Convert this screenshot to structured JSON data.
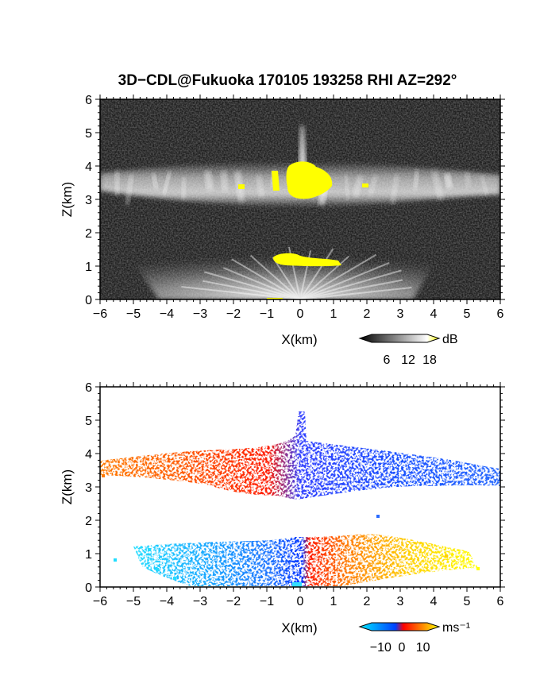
{
  "title": "3D−CDL@Fukuoka 170105 193258 RHI AZ=292°",
  "chart_data": [
    {
      "type": "heatmap",
      "panel": "top",
      "quantity": "backscatter intensity",
      "xlabel": "X(km)",
      "ylabel": "Z(km)",
      "xlim": [
        -6,
        6
      ],
      "ylim": [
        0,
        6
      ],
      "xticks": [
        "−6",
        "−5",
        "−4",
        "−3",
        "−2",
        "−1",
        "0",
        "1",
        "2",
        "3",
        "4",
        "5",
        "6"
      ],
      "yticks": [
        "0",
        "1",
        "2",
        "3",
        "4",
        "5",
        "6"
      ],
      "colorbar": {
        "unit": "dB",
        "ticks": [
          "6",
          "12",
          "18"
        ],
        "range": [
          0,
          20
        ],
        "colors": [
          "#000000",
          "#ffffff",
          "#ffff00"
        ]
      },
      "background": "#202020",
      "layers": [
        {
          "name": "cloud layer",
          "z_base": 3.0,
          "z_top": 4.1,
          "x_range": [
            -6,
            6
          ],
          "peak_dB": 18
        },
        {
          "name": "near-ground fan",
          "z_base": 0.0,
          "z_top": 1.35,
          "x_range": [
            -5,
            5
          ],
          "peak_dB": 18
        },
        {
          "name": "plume",
          "x": 0.1,
          "z_top": 5.3
        }
      ]
    },
    {
      "type": "heatmap",
      "panel": "bottom",
      "quantity": "radial velocity",
      "xlabel": "X(km)",
      "ylabel": "Z(km)",
      "xlim": [
        -6,
        6
      ],
      "ylim": [
        0,
        6
      ],
      "xticks": [
        "−6",
        "−5",
        "−4",
        "−3",
        "−2",
        "−1",
        "0",
        "1",
        "2",
        "3",
        "4",
        "5",
        "6"
      ],
      "yticks": [
        "0",
        "1",
        "2",
        "3",
        "4",
        "5",
        "6"
      ],
      "colorbar": {
        "unit": "ms⁻¹",
        "ticks": [
          "−10",
          "0",
          "10"
        ],
        "range": [
          -15,
          15
        ],
        "colors": [
          "#00e8ff",
          "#0040ff",
          "#ff0000",
          "#ffff00"
        ]
      },
      "background": "#ffffff",
      "layers": [
        {
          "name": "cloud layer",
          "z_base": 2.7,
          "z_top": 4.1,
          "x_range": [
            -6,
            6
          ],
          "left_velocity": 8,
          "right_velocity": -8
        },
        {
          "name": "near-ground layer",
          "z_base": 0.0,
          "z_top": 1.5,
          "x_range": [
            -5.5,
            5.5
          ],
          "left_velocity": -10,
          "right_velocity": 10
        },
        {
          "name": "plume",
          "x": 0.05,
          "z_top": 5.2
        }
      ]
    }
  ]
}
